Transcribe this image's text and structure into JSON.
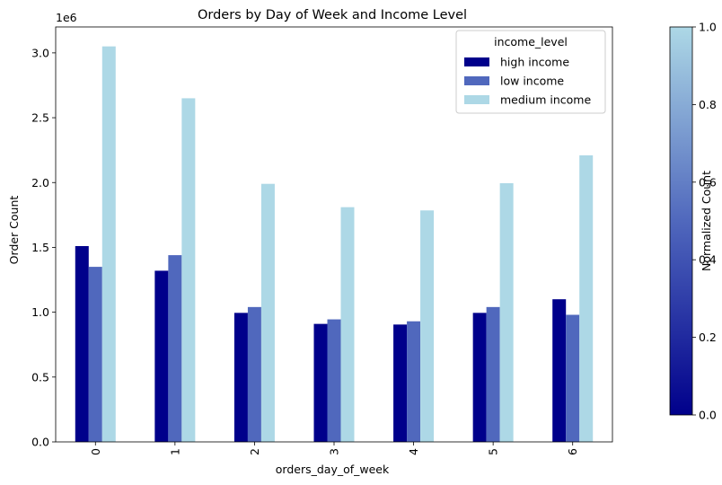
{
  "chart_data": {
    "type": "bar",
    "title": "Orders by Day of Week and Income Level",
    "xlabel": "orders_day_of_week",
    "ylabel": "Order Count",
    "y_scale_note": "1e6",
    "categories": [
      "0",
      "1",
      "2",
      "3",
      "4",
      "5",
      "6"
    ],
    "ylim": [
      0,
      3.2
    ],
    "yticks": [
      "0.0",
      "0.5",
      "1.0",
      "1.5",
      "2.0",
      "2.5",
      "3.0"
    ],
    "grid": false,
    "legend": {
      "title": "income_level",
      "placement": "top-right"
    },
    "series": [
      {
        "name": "high income",
        "color": "#00008b",
        "values": [
          1.51,
          1.32,
          0.995,
          0.91,
          0.905,
          0.995,
          1.1
        ]
      },
      {
        "name": "low income",
        "color": "#5068bd",
        "values": [
          1.35,
          1.44,
          1.04,
          0.945,
          0.93,
          1.04,
          0.98
        ]
      },
      {
        "name": "medium income",
        "color": "#add8e6",
        "values": [
          3.05,
          2.65,
          1.99,
          1.81,
          1.785,
          1.995,
          2.21
        ]
      }
    ],
    "colorbar": {
      "label": "Normalized Count",
      "range": [
        0,
        1
      ],
      "ticks": [
        "0.0",
        "0.2",
        "0.4",
        "0.6",
        "0.8",
        "1.0"
      ],
      "colors": [
        "#00008b",
        "#5068bd",
        "#add8e6"
      ]
    }
  }
}
